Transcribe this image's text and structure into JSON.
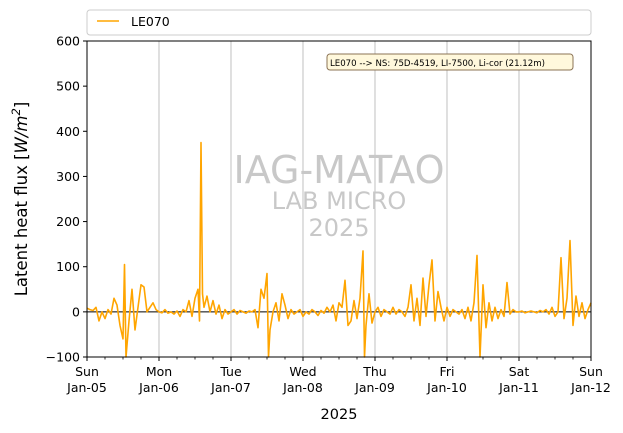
{
  "chart_data": {
    "type": "line",
    "title": "",
    "xlabel": "2025",
    "ylabel": "Latent heat flux",
    "ylabel_unit": "[W/m²]",
    "ylabel_unit_parts": {
      "open": "[",
      "symbol": "W/m",
      "exponent": "2",
      "close": "]"
    },
    "ylim": [
      -100,
      600
    ],
    "yticks": [
      -100,
      0,
      100,
      200,
      300,
      400,
      500,
      600
    ],
    "xlim": [
      "2025-01-05",
      "2025-01-12"
    ],
    "xticks": [
      {
        "day": "Sun",
        "date": "Jan-05"
      },
      {
        "day": "Mon",
        "date": "Jan-06"
      },
      {
        "day": "Tue",
        "date": "Jan-07"
      },
      {
        "day": "Wed",
        "date": "Jan-08"
      },
      {
        "day": "Thu",
        "date": "Jan-09"
      },
      {
        "day": "Fri",
        "date": "Jan-10"
      },
      {
        "day": "Sat",
        "date": "Jan-11"
      },
      {
        "day": "Sun",
        "date": "Jan-12"
      }
    ],
    "grid": "vertical",
    "legend_position": "top",
    "zero_line": 0,
    "series": [
      {
        "name": "LE070",
        "color": "#ffa500",
        "points": [
          [
            "2025-01-05 00:00",
            8
          ],
          [
            "2025-01-05 01:00",
            5
          ],
          [
            "2025-01-05 02:00",
            3
          ],
          [
            "2025-01-05 03:00",
            10
          ],
          [
            "2025-01-05 04:00",
            -20
          ],
          [
            "2025-01-05 05:00",
            0
          ],
          [
            "2025-01-05 06:00",
            -15
          ],
          [
            "2025-01-05 07:00",
            5
          ],
          [
            "2025-01-05 08:00",
            -5
          ],
          [
            "2025-01-05 09:00",
            30
          ],
          [
            "2025-01-05 10:00",
            15
          ],
          [
            "2025-01-05 11:00",
            -30
          ],
          [
            "2025-01-05 12:00",
            -60
          ],
          [
            "2025-01-05 12:30",
            105
          ],
          [
            "2025-01-05 13:00",
            -100
          ],
          [
            "2025-01-05 14:00",
            -20
          ],
          [
            "2025-01-05 15:00",
            50
          ],
          [
            "2025-01-05 16:00",
            -40
          ],
          [
            "2025-01-05 17:00",
            10
          ],
          [
            "2025-01-05 18:00",
            60
          ],
          [
            "2025-01-05 19:00",
            55
          ],
          [
            "2025-01-05 20:00",
            0
          ],
          [
            "2025-01-05 21:00",
            10
          ],
          [
            "2025-01-05 22:00",
            20
          ],
          [
            "2025-01-05 23:00",
            5
          ],
          [
            "2025-01-06 00:00",
            0
          ],
          [
            "2025-01-06 01:00",
            -2
          ],
          [
            "2025-01-06 02:00",
            5
          ],
          [
            "2025-01-06 03:00",
            -3
          ],
          [
            "2025-01-06 04:00",
            0
          ],
          [
            "2025-01-06 05:00",
            -5
          ],
          [
            "2025-01-06 06:00",
            2
          ],
          [
            "2025-01-06 07:00",
            -10
          ],
          [
            "2025-01-06 08:00",
            5
          ],
          [
            "2025-01-06 09:00",
            0
          ],
          [
            "2025-01-06 10:00",
            25
          ],
          [
            "2025-01-06 11:00",
            -10
          ],
          [
            "2025-01-06 12:00",
            30
          ],
          [
            "2025-01-06 13:00",
            50
          ],
          [
            "2025-01-06 13:30",
            -20
          ],
          [
            "2025-01-06 14:00",
            375
          ],
          [
            "2025-01-06 14:30",
            40
          ],
          [
            "2025-01-06 15:00",
            10
          ],
          [
            "2025-01-06 16:00",
            35
          ],
          [
            "2025-01-06 17:00",
            0
          ],
          [
            "2025-01-06 18:00",
            25
          ],
          [
            "2025-01-06 19:00",
            -5
          ],
          [
            "2025-01-06 20:00",
            15
          ],
          [
            "2025-01-06 21:00",
            -15
          ],
          [
            "2025-01-06 22:00",
            5
          ],
          [
            "2025-01-06 23:00",
            -5
          ],
          [
            "2025-01-07 00:00",
            0
          ],
          [
            "2025-01-07 01:00",
            5
          ],
          [
            "2025-01-07 02:00",
            -5
          ],
          [
            "2025-01-07 03:00",
            3
          ],
          [
            "2025-01-07 04:00",
            0
          ],
          [
            "2025-01-07 05:00",
            -3
          ],
          [
            "2025-01-07 06:00",
            2
          ],
          [
            "2025-01-07 07:00",
            0
          ],
          [
            "2025-01-07 08:00",
            5
          ],
          [
            "2025-01-07 09:00",
            -35
          ],
          [
            "2025-01-07 10:00",
            50
          ],
          [
            "2025-01-07 11:00",
            30
          ],
          [
            "2025-01-07 12:00",
            85
          ],
          [
            "2025-01-07 12:30",
            -100
          ],
          [
            "2025-01-07 13:00",
            -40
          ],
          [
            "2025-01-07 14:00",
            0
          ],
          [
            "2025-01-07 15:00",
            20
          ],
          [
            "2025-01-07 16:00",
            -20
          ],
          [
            "2025-01-07 17:00",
            40
          ],
          [
            "2025-01-07 18:00",
            15
          ],
          [
            "2025-01-07 19:00",
            -15
          ],
          [
            "2025-01-07 20:00",
            5
          ],
          [
            "2025-01-07 21:00",
            -5
          ],
          [
            "2025-01-07 22:00",
            0
          ],
          [
            "2025-01-07 23:00",
            5
          ],
          [
            "2025-01-08 00:00",
            -10
          ],
          [
            "2025-01-08 01:00",
            0
          ],
          [
            "2025-01-08 02:00",
            -5
          ],
          [
            "2025-01-08 03:00",
            5
          ],
          [
            "2025-01-08 04:00",
            0
          ],
          [
            "2025-01-08 05:00",
            -8
          ],
          [
            "2025-01-08 06:00",
            3
          ],
          [
            "2025-01-08 07:00",
            -3
          ],
          [
            "2025-01-08 08:00",
            10
          ],
          [
            "2025-01-08 09:00",
            0
          ],
          [
            "2025-01-08 10:00",
            15
          ],
          [
            "2025-01-08 11:00",
            -20
          ],
          [
            "2025-01-08 12:00",
            20
          ],
          [
            "2025-01-08 13:00",
            10
          ],
          [
            "2025-01-08 14:00",
            70
          ],
          [
            "2025-01-08 15:00",
            -30
          ],
          [
            "2025-01-08 16:00",
            -20
          ],
          [
            "2025-01-08 17:00",
            25
          ],
          [
            "2025-01-08 18:00",
            -15
          ],
          [
            "2025-01-08 19:00",
            30
          ],
          [
            "2025-01-08 20:00",
            135
          ],
          [
            "2025-01-08 20:30",
            -100
          ],
          [
            "2025-01-08 21:00",
            -30
          ],
          [
            "2025-01-08 22:00",
            40
          ],
          [
            "2025-01-08 23:00",
            -25
          ],
          [
            "2025-01-09 00:00",
            0
          ],
          [
            "2025-01-09 01:00",
            10
          ],
          [
            "2025-01-09 02:00",
            -10
          ],
          [
            "2025-01-09 03:00",
            5
          ],
          [
            "2025-01-09 04:00",
            0
          ],
          [
            "2025-01-09 05:00",
            -5
          ],
          [
            "2025-01-09 06:00",
            10
          ],
          [
            "2025-01-09 07:00",
            -5
          ],
          [
            "2025-01-09 08:00",
            5
          ],
          [
            "2025-01-09 09:00",
            0
          ],
          [
            "2025-01-09 10:00",
            -10
          ],
          [
            "2025-01-09 11:00",
            10
          ],
          [
            "2025-01-09 12:00",
            60
          ],
          [
            "2025-01-09 13:00",
            -20
          ],
          [
            "2025-01-09 14:00",
            30
          ],
          [
            "2025-01-09 15:00",
            -30
          ],
          [
            "2025-01-09 16:00",
            75
          ],
          [
            "2025-01-09 17:00",
            -10
          ],
          [
            "2025-01-09 18:00",
            60
          ],
          [
            "2025-01-09 19:00",
            115
          ],
          [
            "2025-01-09 20:00",
            -20
          ],
          [
            "2025-01-09 21:00",
            45
          ],
          [
            "2025-01-09 22:00",
            10
          ],
          [
            "2025-01-09 23:00",
            -20
          ],
          [
            "2025-01-10 00:00",
            10
          ],
          [
            "2025-01-10 01:00",
            -10
          ],
          [
            "2025-01-10 02:00",
            5
          ],
          [
            "2025-01-10 03:00",
            0
          ],
          [
            "2025-01-10 04:00",
            -5
          ],
          [
            "2025-01-10 05:00",
            5
          ],
          [
            "2025-01-10 06:00",
            -15
          ],
          [
            "2025-01-10 07:00",
            10
          ],
          [
            "2025-01-10 08:00",
            -20
          ],
          [
            "2025-01-10 09:00",
            20
          ],
          [
            "2025-01-10 10:00",
            125
          ],
          [
            "2025-01-10 11:00",
            -100
          ],
          [
            "2025-01-10 12:00",
            60
          ],
          [
            "2025-01-10 13:00",
            -35
          ],
          [
            "2025-01-10 14:00",
            20
          ],
          [
            "2025-01-10 15:00",
            -20
          ],
          [
            "2025-01-10 16:00",
            10
          ],
          [
            "2025-01-10 17:00",
            -15
          ],
          [
            "2025-01-10 18:00",
            5
          ],
          [
            "2025-01-10 19:00",
            -10
          ],
          [
            "2025-01-10 20:00",
            65
          ],
          [
            "2025-01-10 21:00",
            -5
          ],
          [
            "2025-01-10 22:00",
            5
          ],
          [
            "2025-01-10 23:00",
            0
          ],
          [
            "2025-01-11 00:00",
            0
          ],
          [
            "2025-01-11 01:00",
            2
          ],
          [
            "2025-01-11 02:00",
            -2
          ],
          [
            "2025-01-11 03:00",
            0
          ],
          [
            "2025-01-11 04:00",
            2
          ],
          [
            "2025-01-11 05:00",
            0
          ],
          [
            "2025-01-11 06:00",
            -2
          ],
          [
            "2025-01-11 07:00",
            3
          ],
          [
            "2025-01-11 08:00",
            0
          ],
          [
            "2025-01-11 09:00",
            5
          ],
          [
            "2025-01-11 10:00",
            -5
          ],
          [
            "2025-01-11 11:00",
            10
          ],
          [
            "2025-01-11 12:00",
            -10
          ],
          [
            "2025-01-11 13:00",
            0
          ],
          [
            "2025-01-11 14:00",
            120
          ],
          [
            "2025-01-11 15:00",
            -15
          ],
          [
            "2025-01-11 16:00",
            30
          ],
          [
            "2025-01-11 17:00",
            158
          ],
          [
            "2025-01-11 18:00",
            -30
          ],
          [
            "2025-01-11 19:00",
            35
          ],
          [
            "2025-01-11 20:00",
            -10
          ],
          [
            "2025-01-11 21:00",
            20
          ],
          [
            "2025-01-11 22:00",
            -15
          ],
          [
            "2025-01-11 23:00",
            5
          ],
          [
            "2025-01-12 00:00",
            20
          ]
        ]
      }
    ],
    "annotation": "LE070 --> NS: 75D-4519, LI-7500, Li-cor (21.12m)",
    "watermark": [
      "IAG-MATAO",
      "LAB MICRO",
      "2025"
    ]
  },
  "colors": {
    "series": "#ffa500",
    "grid": "#b0b0b0",
    "watermark": "#c8c8c8",
    "annotation_fill": "#fff8dc",
    "annotation_border": "#8b7355"
  }
}
